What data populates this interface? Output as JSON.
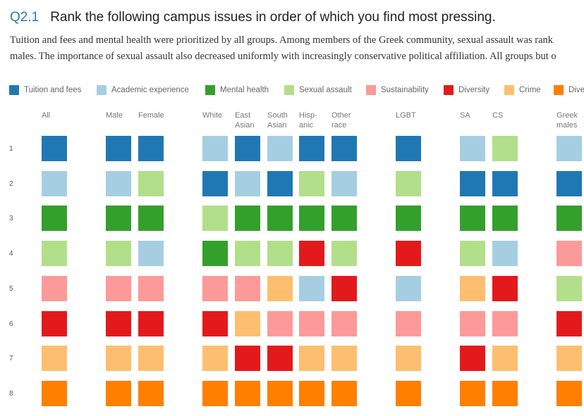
{
  "header": {
    "question_number": "Q2.1",
    "title": "Rank the following campus issues in order of which you find most pressing.",
    "description_line1": "Tuition and fees and mental health were prioritized by all groups. Among members of the Greek community, sexual assault was rank",
    "description_line2": "males. The importance of sexual assault also decreased uniformly with increasingly conservative political affiliation. All groups but o"
  },
  "legend": [
    {
      "label": "Tuition and fees",
      "color": "#1f78b4"
    },
    {
      "label": "Academic experience",
      "color": "#a6cee3"
    },
    {
      "label": "Mental health",
      "color": "#33a02c"
    },
    {
      "label": "Sexual assault",
      "color": "#b2df8a"
    },
    {
      "label": "Sustainability",
      "color": "#fb9a99"
    },
    {
      "label": "Diversity",
      "color": "#e31a1c"
    },
    {
      "label": "Crime",
      "color": "#fdbf6f"
    },
    {
      "label": "Dive",
      "color": "#ff7f00"
    }
  ],
  "chart_data": {
    "type": "heatmap",
    "title": "Rank the following campus issues in order of which you find most pressing.",
    "rows": [
      "1",
      "2",
      "3",
      "4",
      "5",
      "6",
      "7",
      "8"
    ],
    "columns": [
      "All",
      "Male",
      "Female",
      "White",
      "East\nAsian",
      "South\nAsian",
      "Hisp-\nanic",
      "Other\nrace",
      "LGBT",
      "SA",
      "CS",
      "Greek\nmales"
    ],
    "rankings": {
      "All": [
        "Tuition and fees",
        "Academic experience",
        "Mental health",
        "Sexual assault",
        "Sustainability",
        "Diversity",
        "Crime",
        "Dive"
      ],
      "Male": [
        "Tuition and fees",
        "Academic experience",
        "Mental health",
        "Sexual assault",
        "Sustainability",
        "Diversity",
        "Crime",
        "Dive"
      ],
      "Female": [
        "Tuition and fees",
        "Sexual assault",
        "Mental health",
        "Academic experience",
        "Sustainability",
        "Diversity",
        "Crime",
        "Dive"
      ],
      "White": [
        "Academic experience",
        "Tuition and fees",
        "Sexual assault",
        "Mental health",
        "Sustainability",
        "Diversity",
        "Crime",
        "Dive"
      ],
      "East Asian": [
        "Tuition and fees",
        "Academic experience",
        "Mental health",
        "Sexual assault",
        "Sustainability",
        "Crime",
        "Diversity",
        "Dive"
      ],
      "South Asian": [
        "Academic experience",
        "Tuition and fees",
        "Mental health",
        "Sexual assault",
        "Crime",
        "Sustainability",
        "Diversity",
        "Dive"
      ],
      "Hispanic": [
        "Tuition and fees",
        "Sexual assault",
        "Mental health",
        "Diversity",
        "Academic experience",
        "Sustainability",
        "Crime",
        "Dive"
      ],
      "Other race": [
        "Tuition and fees",
        "Academic experience",
        "Mental health",
        "Sexual assault",
        "Diversity",
        "Sustainability",
        "Crime",
        "Dive"
      ],
      "LGBT": [
        "Tuition and fees",
        "Sexual assault",
        "Mental health",
        "Diversity",
        "Academic experience",
        "Sustainability",
        "Crime",
        "Dive"
      ],
      "SA": [
        "Academic experience",
        "Tuition and fees",
        "Mental health",
        "Sexual assault",
        "Crime",
        "Sustainability",
        "Diversity",
        "Dive"
      ],
      "CS": [
        "Sexual assault",
        "Tuition and fees",
        "Mental health",
        "Academic experience",
        "Diversity",
        "Sustainability",
        "Crime",
        "Dive"
      ],
      "Greek males": [
        "Academic experience",
        "Tuition and fees",
        "Mental health",
        "Sustainability",
        "Sexual assault",
        "Diversity",
        "Crime",
        "Dive"
      ]
    }
  }
}
